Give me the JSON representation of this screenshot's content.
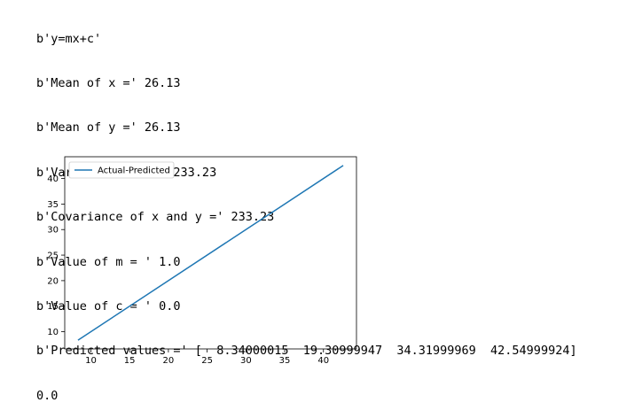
{
  "console": {
    "lines": [
      "b'y=mx+c'",
      "b'Mean of x =' 26.13",
      "b'Mean of y =' 26.13",
      "b'Variance of x =' 233.23",
      "b'Covariance of x and y =' 233.23",
      "b'Value of m = ' 1.0",
      "b'Value of c = ' 0.0",
      "b'Predicted values =' [  8.34000015  19.30999947  34.31999969  42.54999924]",
      "0.0"
    ]
  },
  "chart_data": {
    "type": "line",
    "series": [
      {
        "name": "Actual-Predicted",
        "color": "#1f77b4",
        "x": [
          8.34000015,
          19.30999947,
          34.31999969,
          42.54999924
        ],
        "y": [
          8.34000015,
          19.30999947,
          34.31999969,
          42.54999924
        ]
      }
    ],
    "xlim": [
      6.63,
      44.26
    ],
    "ylim": [
      6.63,
      44.26
    ],
    "xticks": [
      10,
      15,
      20,
      25,
      30,
      35,
      40
    ],
    "yticks": [
      10,
      15,
      20,
      25,
      30,
      35,
      40
    ],
    "xtick_labels": [
      "10",
      "15",
      "20",
      "25",
      "30",
      "35",
      "40"
    ],
    "ytick_labels": [
      "10",
      "15",
      "20",
      "25",
      "30",
      "35",
      "40"
    ],
    "legend_position": "upper-left",
    "grid": false
  }
}
